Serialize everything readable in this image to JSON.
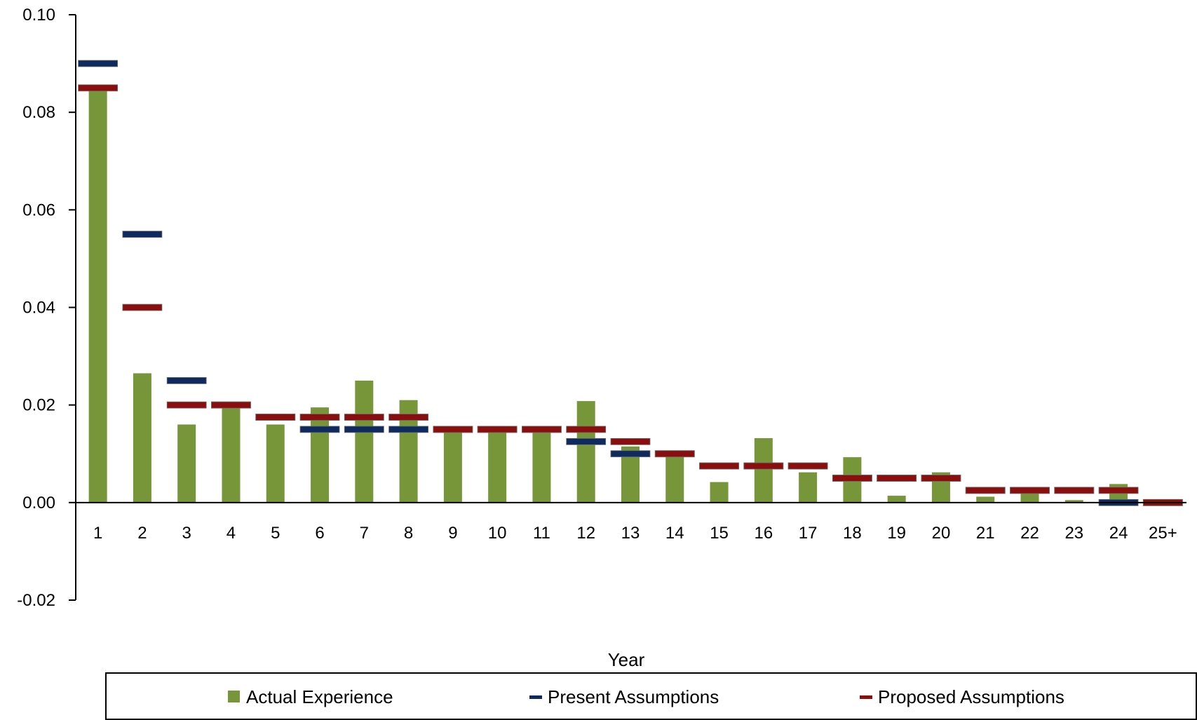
{
  "chart_data": {
    "type": "bar",
    "title": "",
    "xlabel": "Year",
    "ylabel": "",
    "ylim": [
      -0.02,
      0.1
    ],
    "yticks": [
      -0.02,
      0.0,
      0.02,
      0.04,
      0.06,
      0.08,
      0.1
    ],
    "ytick_labels": [
      "-0.02",
      "0.00",
      "0.02",
      "0.04",
      "0.06",
      "0.08",
      "0.10"
    ],
    "categories": [
      "1",
      "2",
      "3",
      "4",
      "5",
      "6",
      "7",
      "8",
      "9",
      "10",
      "11",
      "12",
      "13",
      "14",
      "15",
      "16",
      "17",
      "18",
      "19",
      "20",
      "21",
      "22",
      "23",
      "24",
      "25+"
    ],
    "series": [
      {
        "name": "Actual Experience",
        "kind": "bar",
        "color": "#77963a",
        "values": [
          0.085,
          0.0265,
          0.016,
          0.0195,
          0.016,
          0.0195,
          0.025,
          0.021,
          0.0145,
          0.0155,
          0.0155,
          0.0208,
          0.0115,
          0.0095,
          0.0042,
          0.0132,
          0.0062,
          0.0093,
          0.0014,
          0.0062,
          0.0012,
          0.002,
          0.0005,
          0.0038,
          0.0
        ]
      },
      {
        "name": "Present Assumptions",
        "kind": "marker",
        "color": "#0e2a5e",
        "values": [
          0.09,
          0.055,
          0.025,
          0.02,
          0.0175,
          0.015,
          0.015,
          0.015,
          0.015,
          0.015,
          0.015,
          0.0125,
          0.01,
          0.01,
          0.0075,
          0.0075,
          0.0075,
          0.005,
          0.005,
          0.005,
          0.0025,
          0.0025,
          0.0025,
          0.0,
          0.0
        ]
      },
      {
        "name": "Proposed Assumptions",
        "kind": "marker",
        "color": "#8b0e0e",
        "values": [
          0.085,
          0.04,
          0.02,
          0.02,
          0.0175,
          0.0175,
          0.0175,
          0.0175,
          0.015,
          0.015,
          0.015,
          0.015,
          0.0125,
          0.01,
          0.0075,
          0.0075,
          0.0075,
          0.005,
          0.005,
          0.005,
          0.0025,
          0.0025,
          0.0025,
          0.0025,
          0.0
        ]
      }
    ],
    "legend_position": "bottom",
    "grid": false
  }
}
